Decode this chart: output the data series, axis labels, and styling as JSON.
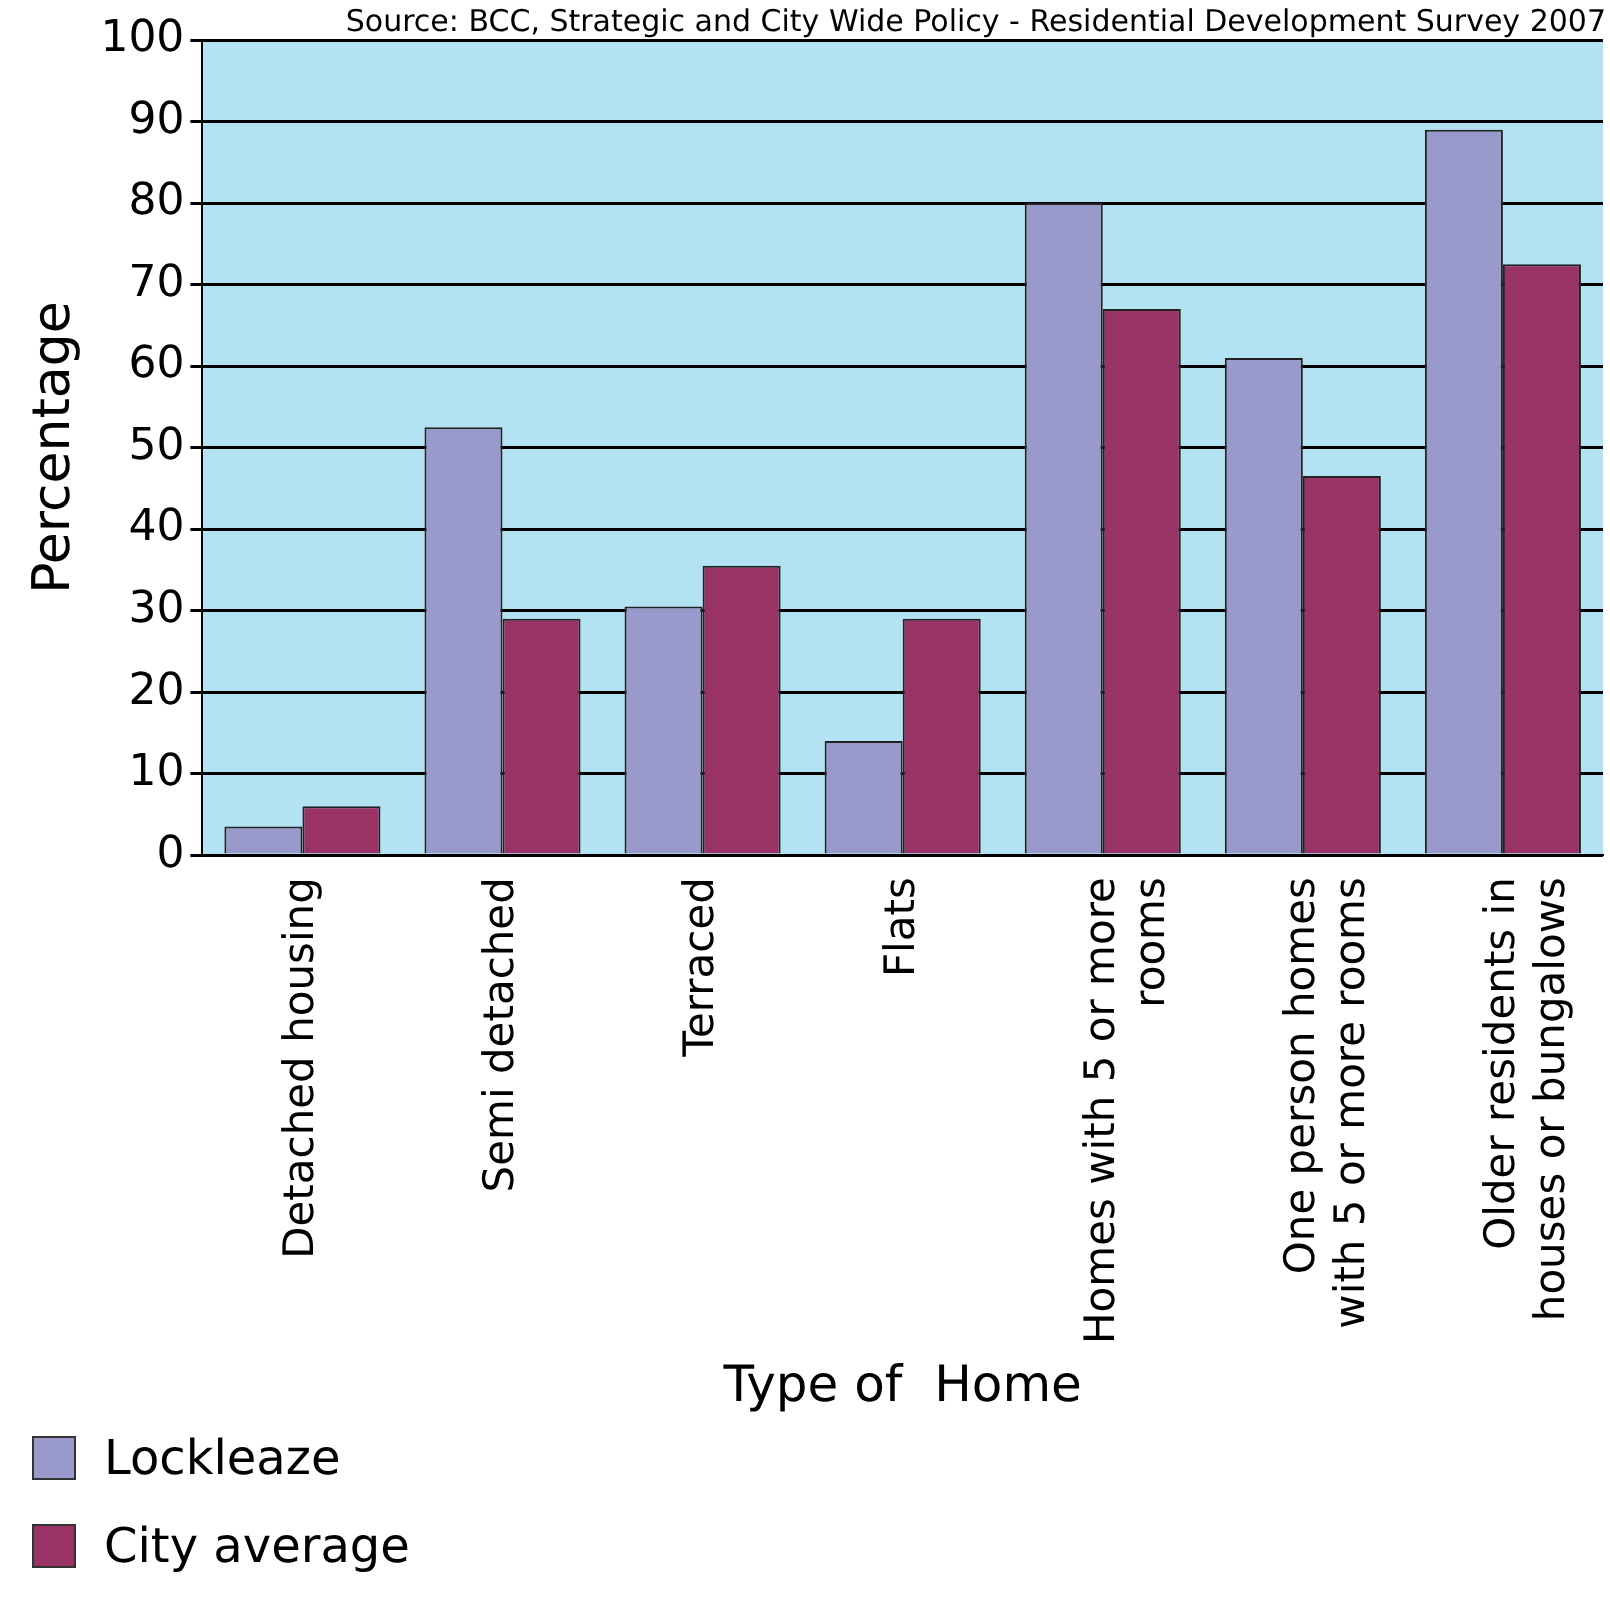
{
  "chart_data": {
    "type": "bar",
    "xlabel": "Type of  Home",
    "ylabel": "Percentage",
    "annotations": [
      "Source: BCC, Strategic and City Wide Policy - Residential Development Survey 2007"
    ],
    "categories": [
      "Detached housing",
      "Semi detached",
      "Terraced",
      "Flats",
      "Homes with 5 or more rooms",
      "One person homes with 5 or more rooms",
      "Older residents in houses or bungalows"
    ],
    "series": [
      {
        "name": "Lockleaze",
        "color": "#9999cc",
        "values": [
          3.5,
          52.5,
          30.5,
          14,
          80,
          61,
          89
        ]
      },
      {
        "name": "City average",
        "color": "#993366",
        "values": [
          6,
          29,
          35.5,
          29,
          67,
          46.5,
          72.5
        ]
      }
    ],
    "ylim": [
      0,
      100
    ],
    "yticks": [
      0,
      10,
      20,
      30,
      40,
      50,
      60,
      70,
      80,
      90,
      100
    ],
    "grid": "y",
    "legend": "bottom left"
  }
}
